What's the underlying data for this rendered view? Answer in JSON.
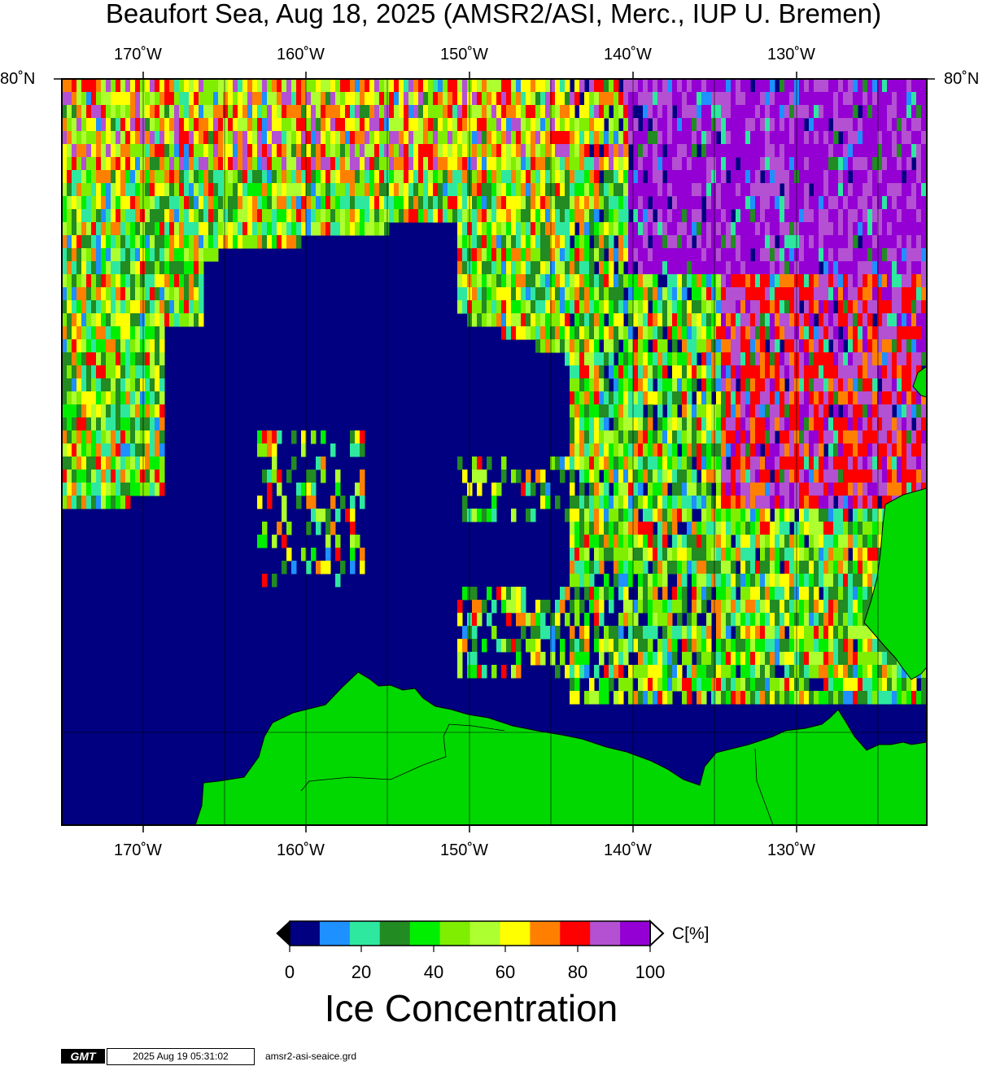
{
  "title": "Beaufort Sea, Aug 18, 2025 (AMSR2/ASI, Merc., IUP U. Bremen)",
  "map": {
    "region": "Beaufort Sea",
    "projection": "Merc.",
    "lon_labels": [
      "170˚W",
      "160˚W",
      "150˚W",
      "140˚W",
      "130˚W"
    ],
    "lat_label_left": "80˚N",
    "lat_label_right": "80˚N",
    "colors": {
      "water": "#000080",
      "land": "#00d800"
    }
  },
  "colorbar": {
    "unit": "C[%]",
    "tick_labels": [
      "0",
      "20",
      "40",
      "60",
      "80",
      "100"
    ],
    "colors": [
      "#000080",
      "#1e90ff",
      "#2ee8a0",
      "#228b22",
      "#00ee00",
      "#7fee00",
      "#adff2f",
      "#ffff00",
      "#ff8000",
      "#ff0000",
      "#b450d2",
      "#9400d3"
    ],
    "under_color": "#000000",
    "over_color": "#ffffff"
  },
  "legend_title": "Ice Concentration",
  "footer": {
    "logo": "GMT",
    "timestamp": "2025 Aug 19 05:31:02",
    "grid_file": "amsr2-asi-seaice.grd"
  }
}
